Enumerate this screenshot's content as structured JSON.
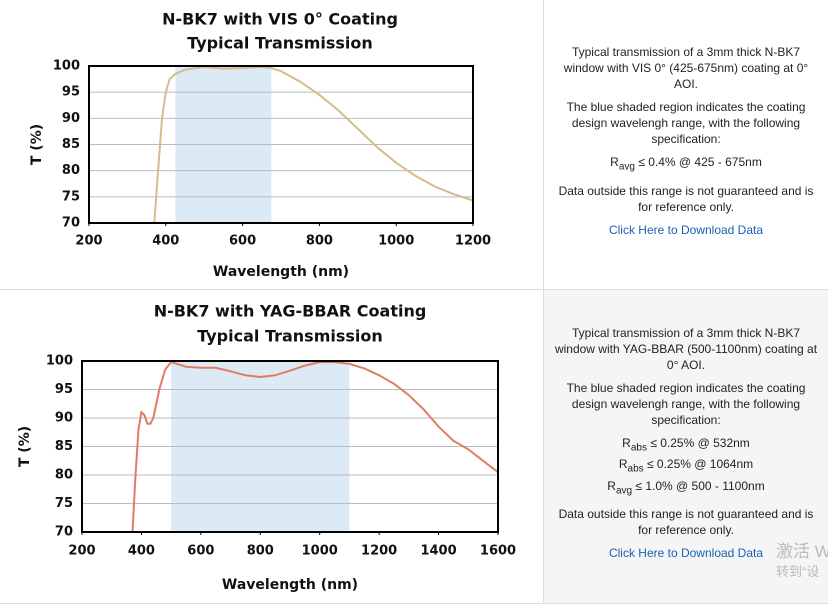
{
  "chart_data": [
    {
      "type": "line",
      "title": [
        "N-BK7 with VIS 0° Coating",
        "Typical Transmission"
      ],
      "x_label": "Wavelength (nm)",
      "y_label": "T (%)",
      "xlim": [
        200,
        1200
      ],
      "xticks": [
        200,
        400,
        600,
        800,
        1000,
        1200
      ],
      "ylim": [
        70,
        100
      ],
      "yticks": [
        70,
        75,
        80,
        85,
        90,
        95,
        100
      ],
      "grid": true,
      "shaded_range": [
        425,
        675
      ],
      "shade_color": "#dceaf6",
      "color": "#d6bb8e",
      "x": [
        370,
        380,
        390,
        400,
        410,
        425,
        450,
        500,
        550,
        600,
        650,
        675,
        700,
        750,
        800,
        850,
        900,
        950,
        1000,
        1050,
        1100,
        1150,
        1200
      ],
      "values": [
        70,
        80,
        90,
        95,
        97.5,
        98.5,
        99.3,
        99.8,
        99.5,
        99.6,
        99.8,
        99.6,
        99,
        97,
        94.5,
        91.5,
        88,
        84.5,
        81.5,
        79,
        77,
        75.5,
        74.3
      ]
    },
    {
      "type": "line",
      "title": [
        "N-BK7 with YAG-BBAR Coating",
        "Typical Transmission"
      ],
      "x_label": "Wavelength (nm)",
      "y_label": "T (%)",
      "xlim": [
        200,
        1600
      ],
      "xticks": [
        200,
        400,
        600,
        800,
        1000,
        1200,
        1400,
        1600
      ],
      "ylim": [
        70,
        100
      ],
      "yticks": [
        70,
        75,
        80,
        85,
        90,
        95,
        100
      ],
      "grid": true,
      "shaded_range": [
        500,
        1100
      ],
      "shade_color": "#dceaf6",
      "color": "#e07c66",
      "x": [
        370,
        380,
        390,
        400,
        410,
        420,
        430,
        440,
        460,
        480,
        500,
        520,
        550,
        600,
        650,
        700,
        750,
        800,
        850,
        900,
        950,
        1000,
        1050,
        1100,
        1150,
        1200,
        1250,
        1300,
        1350,
        1400,
        1450,
        1500,
        1550,
        1600
      ],
      "values": [
        70,
        80,
        88,
        91,
        90.5,
        89,
        89,
        90,
        95,
        98.5,
        99.8,
        99.5,
        99,
        98.8,
        98.8,
        98.2,
        97.5,
        97.2,
        97.5,
        98.3,
        99.2,
        99.8,
        99.8,
        99.5,
        98.7,
        97.5,
        96,
        94,
        91.5,
        88.5,
        86,
        84.5,
        82.5,
        80.5
      ]
    }
  ],
  "panels": [
    {
      "intro": "Typical transmission of a 3mm thick N-BK7 window with VIS 0° (425-675nm) coating at 0° AOI.",
      "shade_note": "The blue shaded region indicates the coating design wavelengh range, with the following specification:",
      "specs": [
        {
          "symbol": "R",
          "sub": "avg",
          "text": "≤ 0.4% @ 425 - 675nm"
        }
      ],
      "disclaimer": "Data outside this range is not guaranteed and is for reference only.",
      "link": "Click Here to Download Data"
    },
    {
      "intro": "Typical transmission of a 3mm thick N-BK7 window with YAG-BBAR (500-1100nm) coating at 0° AOI.",
      "shade_note": "The blue shaded region indicates the coating design wavelengh range, with the following specification:",
      "specs": [
        {
          "symbol": "R",
          "sub": "abs",
          "text": "≤ 0.25% @ 532nm"
        },
        {
          "symbol": "R",
          "sub": "abs",
          "text": "≤ 0.25% @ 1064nm"
        },
        {
          "symbol": "R",
          "sub": "avg",
          "text": "≤ 1.0% @ 500 - 1100nm"
        }
      ],
      "disclaimer": "Data outside this range is not guaranteed and is for reference only.",
      "link": "Click Here to Download Data"
    }
  ],
  "watermark": [
    "激活 W",
    "转到“设"
  ]
}
